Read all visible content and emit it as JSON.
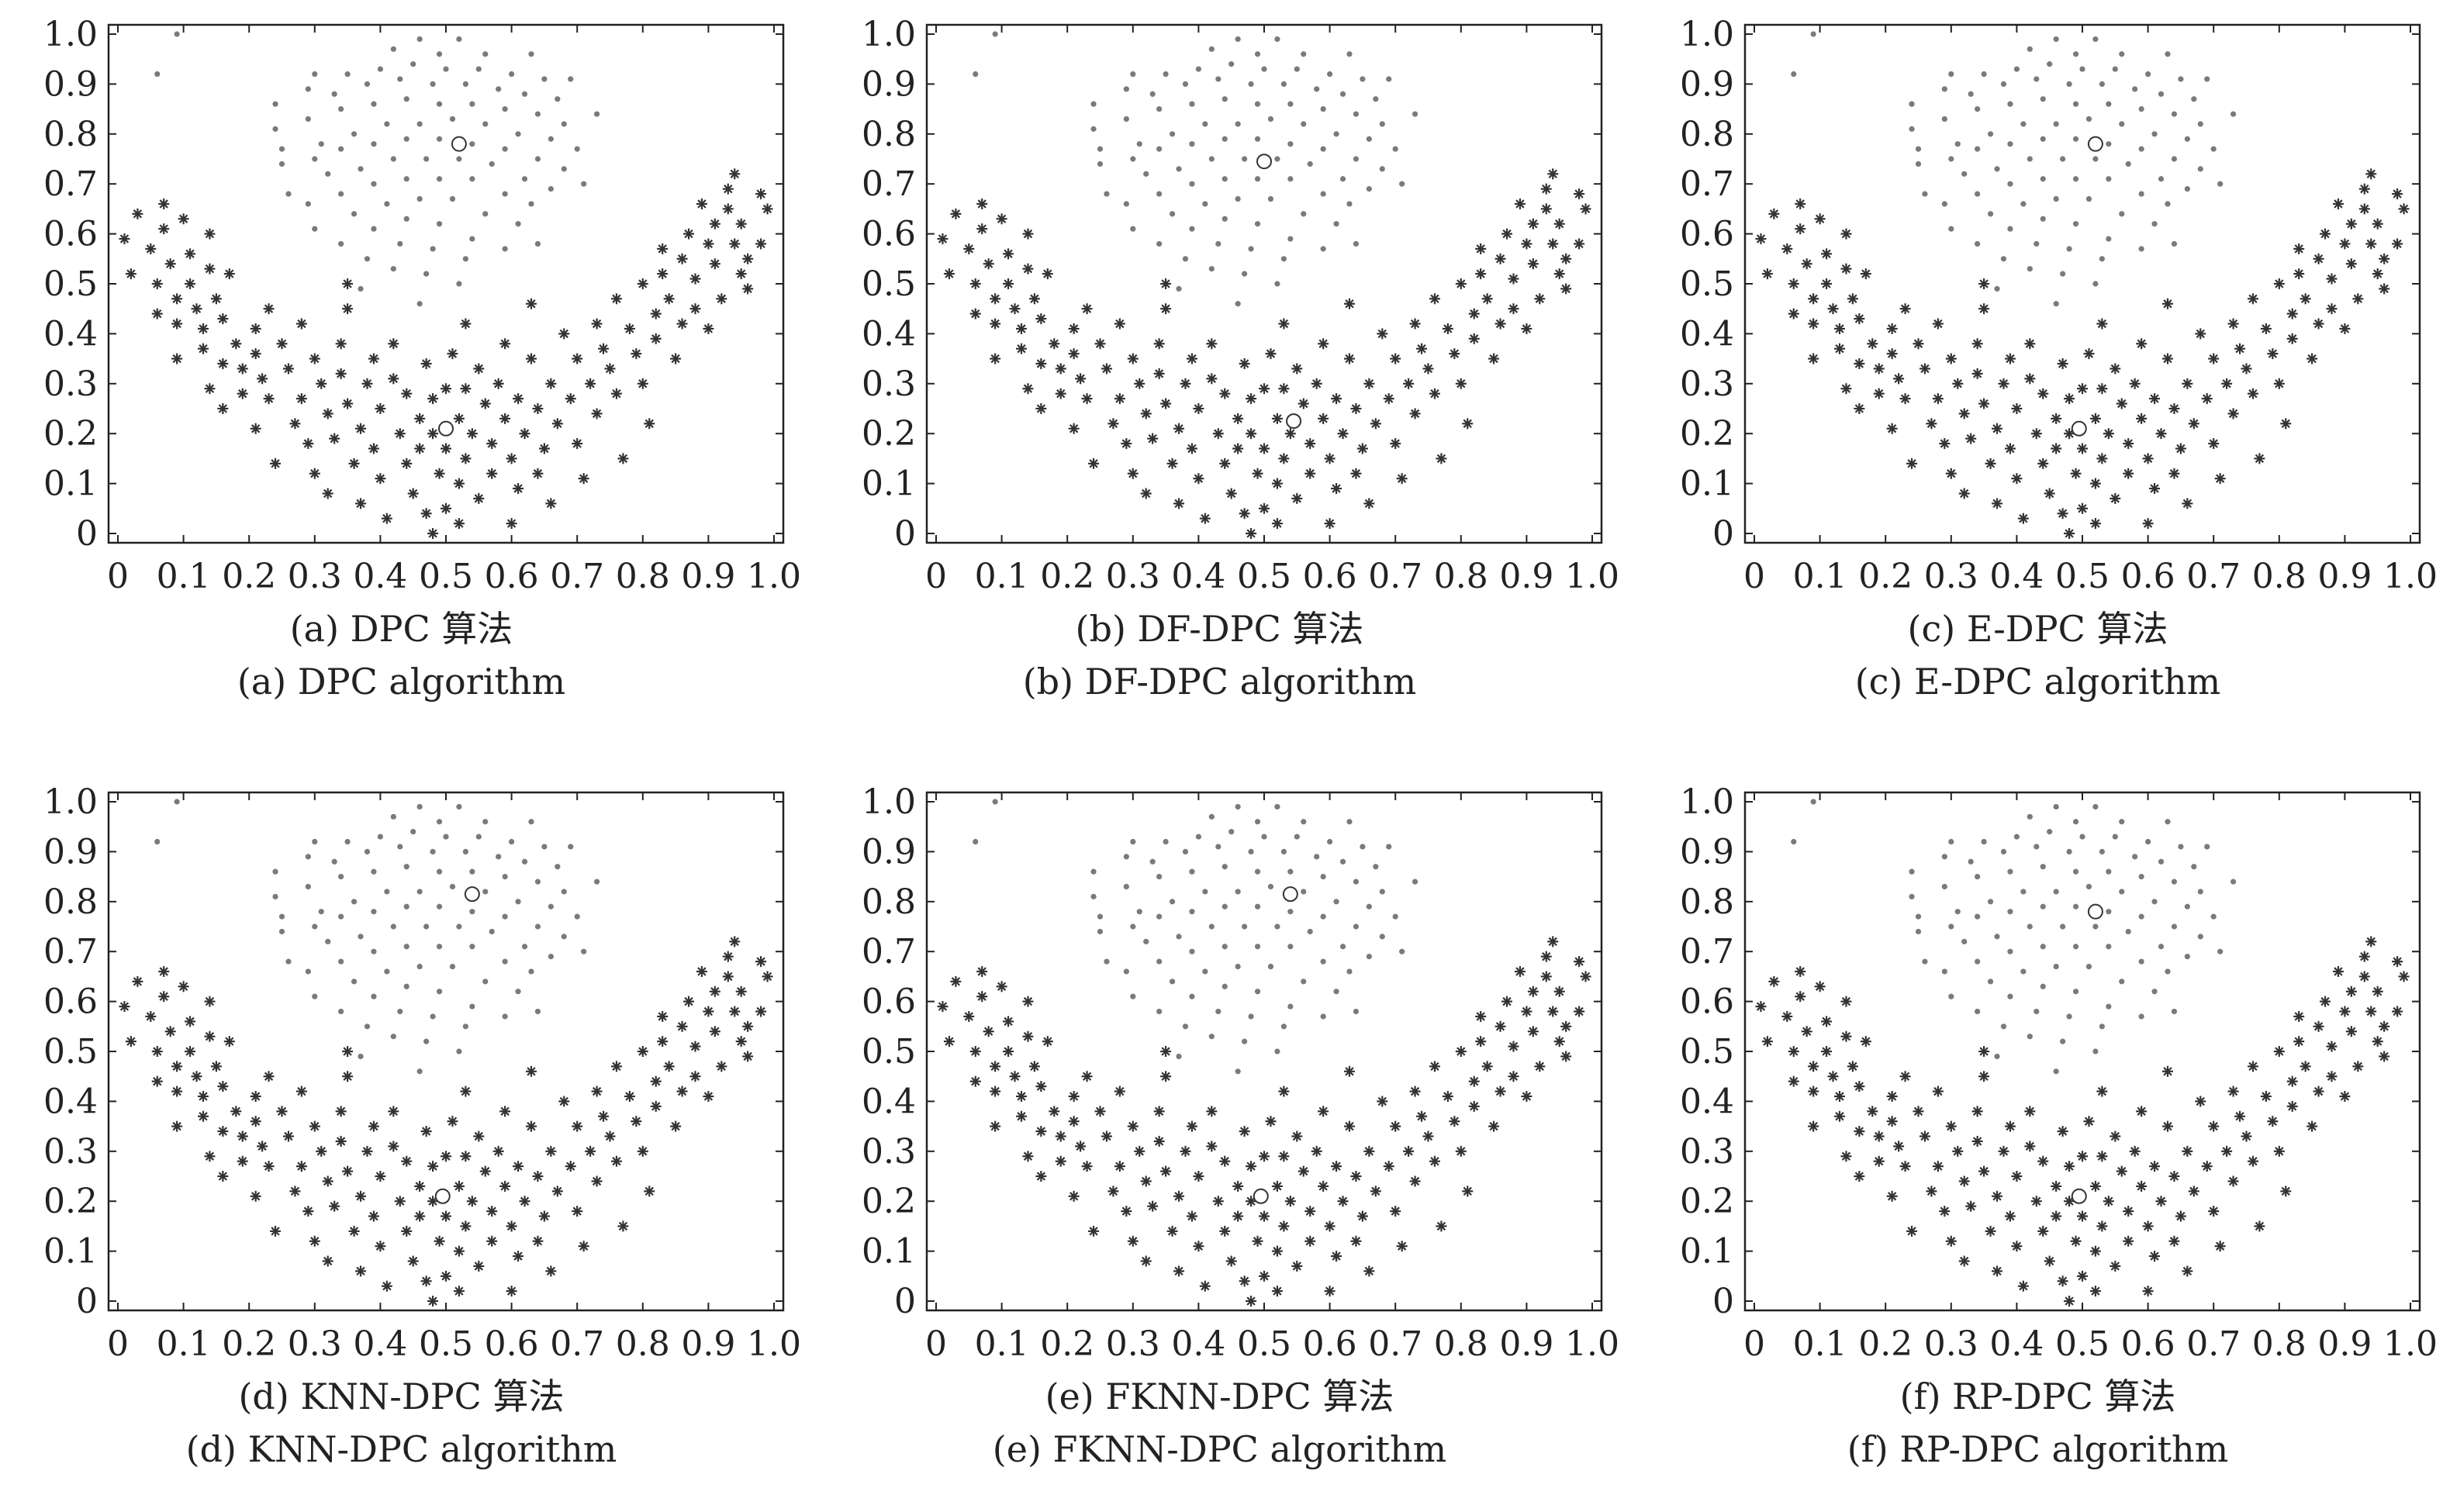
{
  "figure": {
    "panels": [
      {
        "id": "a",
        "caption_cn": "(a) DPC 算法",
        "caption_en": "(a) DPC algorithm",
        "centers": [
          [
            0.52,
            0.78
          ],
          [
            0.5,
            0.21
          ]
        ]
      },
      {
        "id": "b",
        "caption_cn": "(b) DF-DPC 算法",
        "caption_en": "(b) DF-DPC algorithm",
        "centers": [
          [
            0.5,
            0.745
          ],
          [
            0.545,
            0.225
          ]
        ]
      },
      {
        "id": "c",
        "caption_cn": "(c) E-DPC 算法",
        "caption_en": "(c) E-DPC algorithm",
        "centers": [
          [
            0.52,
            0.78
          ],
          [
            0.495,
            0.21
          ]
        ]
      },
      {
        "id": "d",
        "caption_cn": "(d) KNN-DPC 算法",
        "caption_en": "(d) KNN-DPC algorithm",
        "centers": [
          [
            0.54,
            0.815
          ],
          [
            0.495,
            0.21
          ]
        ]
      },
      {
        "id": "e",
        "caption_cn": "(e) FKNN-DPC 算法",
        "caption_en": "(e) FKNN-DPC algorithm",
        "centers": [
          [
            0.54,
            0.815
          ],
          [
            0.495,
            0.21
          ]
        ]
      },
      {
        "id": "f",
        "caption_cn": "(f) RP-DPC 算法",
        "caption_en": "(f) RP-DPC algorithm",
        "centers": [
          [
            0.52,
            0.78
          ],
          [
            0.495,
            0.21
          ]
        ]
      }
    ]
  },
  "chart_data": {
    "type": "scatter",
    "xlim": [
      0,
      1.0
    ],
    "ylim": [
      0,
      1.0
    ],
    "xticks": [
      "0",
      "0.1",
      "0.2",
      "0.3",
      "0.4",
      "0.5",
      "0.6",
      "0.7",
      "0.8",
      "0.9",
      "1.0"
    ],
    "yticks": [
      "0",
      "0.1",
      "0.2",
      "0.3",
      "0.4",
      "0.5",
      "0.6",
      "0.7",
      "0.8",
      "0.9",
      "1.0"
    ],
    "series": [
      {
        "marker": "dot",
        "points": [
          [
            0.09,
            1.0
          ],
          [
            0.06,
            0.92
          ],
          [
            0.46,
            0.99
          ],
          [
            0.52,
            0.99
          ],
          [
            0.42,
            0.97
          ],
          [
            0.49,
            0.96
          ],
          [
            0.56,
            0.96
          ],
          [
            0.63,
            0.96
          ],
          [
            0.3,
            0.92
          ],
          [
            0.35,
            0.92
          ],
          [
            0.4,
            0.93
          ],
          [
            0.45,
            0.94
          ],
          [
            0.5,
            0.93
          ],
          [
            0.55,
            0.93
          ],
          [
            0.6,
            0.92
          ],
          [
            0.65,
            0.91
          ],
          [
            0.69,
            0.91
          ],
          [
            0.24,
            0.86
          ],
          [
            0.29,
            0.89
          ],
          [
            0.33,
            0.88
          ],
          [
            0.38,
            0.9
          ],
          [
            0.43,
            0.91
          ],
          [
            0.48,
            0.9
          ],
          [
            0.53,
            0.9
          ],
          [
            0.58,
            0.89
          ],
          [
            0.62,
            0.88
          ],
          [
            0.67,
            0.87
          ],
          [
            0.24,
            0.81
          ],
          [
            0.29,
            0.83
          ],
          [
            0.34,
            0.85
          ],
          [
            0.39,
            0.86
          ],
          [
            0.44,
            0.87
          ],
          [
            0.49,
            0.86
          ],
          [
            0.54,
            0.86
          ],
          [
            0.59,
            0.85
          ],
          [
            0.64,
            0.84
          ],
          [
            0.68,
            0.82
          ],
          [
            0.73,
            0.84
          ],
          [
            0.25,
            0.77
          ],
          [
            0.31,
            0.78
          ],
          [
            0.36,
            0.8
          ],
          [
            0.41,
            0.82
          ],
          [
            0.46,
            0.82
          ],
          [
            0.51,
            0.83
          ],
          [
            0.56,
            0.82
          ],
          [
            0.61,
            0.8
          ],
          [
            0.66,
            0.79
          ],
          [
            0.7,
            0.77
          ],
          [
            0.25,
            0.74
          ],
          [
            0.3,
            0.75
          ],
          [
            0.34,
            0.77
          ],
          [
            0.39,
            0.78
          ],
          [
            0.44,
            0.79
          ],
          [
            0.49,
            0.79
          ],
          [
            0.54,
            0.78
          ],
          [
            0.59,
            0.77
          ],
          [
            0.64,
            0.75
          ],
          [
            0.68,
            0.73
          ],
          [
            0.26,
            0.68
          ],
          [
            0.32,
            0.72
          ],
          [
            0.37,
            0.73
          ],
          [
            0.42,
            0.75
          ],
          [
            0.47,
            0.75
          ],
          [
            0.52,
            0.75
          ],
          [
            0.57,
            0.74
          ],
          [
            0.62,
            0.71
          ],
          [
            0.66,
            0.69
          ],
          [
            0.71,
            0.7
          ],
          [
            0.29,
            0.66
          ],
          [
            0.34,
            0.68
          ],
          [
            0.39,
            0.7
          ],
          [
            0.44,
            0.71
          ],
          [
            0.49,
            0.71
          ],
          [
            0.54,
            0.71
          ],
          [
            0.59,
            0.68
          ],
          [
            0.63,
            0.66
          ],
          [
            0.3,
            0.61
          ],
          [
            0.36,
            0.64
          ],
          [
            0.41,
            0.66
          ],
          [
            0.46,
            0.67
          ],
          [
            0.51,
            0.67
          ],
          [
            0.56,
            0.64
          ],
          [
            0.61,
            0.62
          ],
          [
            0.64,
            0.58
          ],
          [
            0.34,
            0.58
          ],
          [
            0.39,
            0.61
          ],
          [
            0.44,
            0.63
          ],
          [
            0.49,
            0.62
          ],
          [
            0.54,
            0.59
          ],
          [
            0.59,
            0.57
          ],
          [
            0.38,
            0.55
          ],
          [
            0.43,
            0.58
          ],
          [
            0.48,
            0.57
          ],
          [
            0.53,
            0.55
          ],
          [
            0.42,
            0.53
          ],
          [
            0.47,
            0.52
          ],
          [
            0.52,
            0.5
          ],
          [
            0.37,
            0.49
          ],
          [
            0.46,
            0.46
          ]
        ]
      },
      {
        "marker": "star",
        "points": [
          [
            0.01,
            0.59
          ],
          [
            0.02,
            0.52
          ],
          [
            0.03,
            0.64
          ],
          [
            0.05,
            0.57
          ],
          [
            0.06,
            0.5
          ],
          [
            0.06,
            0.44
          ],
          [
            0.07,
            0.66
          ],
          [
            0.07,
            0.61
          ],
          [
            0.08,
            0.54
          ],
          [
            0.09,
            0.47
          ],
          [
            0.09,
            0.42
          ],
          [
            0.09,
            0.35
          ],
          [
            0.1,
            0.63
          ],
          [
            0.11,
            0.56
          ],
          [
            0.11,
            0.5
          ],
          [
            0.12,
            0.45
          ],
          [
            0.13,
            0.41
          ],
          [
            0.13,
            0.37
          ],
          [
            0.14,
            0.6
          ],
          [
            0.14,
            0.53
          ],
          [
            0.15,
            0.47
          ],
          [
            0.16,
            0.43
          ],
          [
            0.14,
            0.29
          ],
          [
            0.16,
            0.34
          ],
          [
            0.16,
            0.25
          ],
          [
            0.17,
            0.52
          ],
          [
            0.18,
            0.38
          ],
          [
            0.19,
            0.33
          ],
          [
            0.19,
            0.28
          ],
          [
            0.21,
            0.41
          ],
          [
            0.21,
            0.36
          ],
          [
            0.22,
            0.31
          ],
          [
            0.23,
            0.27
          ],
          [
            0.21,
            0.21
          ],
          [
            0.23,
            0.45
          ],
          [
            0.24,
            0.14
          ],
          [
            0.25,
            0.38
          ],
          [
            0.26,
            0.33
          ],
          [
            0.27,
            0.22
          ],
          [
            0.28,
            0.42
          ],
          [
            0.28,
            0.27
          ],
          [
            0.29,
            0.18
          ],
          [
            0.3,
            0.35
          ],
          [
            0.3,
            0.12
          ],
          [
            0.31,
            0.3
          ],
          [
            0.32,
            0.24
          ],
          [
            0.32,
            0.08
          ],
          [
            0.33,
            0.19
          ],
          [
            0.34,
            0.38
          ],
          [
            0.34,
            0.32
          ],
          [
            0.35,
            0.5
          ],
          [
            0.35,
            0.45
          ],
          [
            0.35,
            0.26
          ],
          [
            0.36,
            0.14
          ],
          [
            0.37,
            0.21
          ],
          [
            0.37,
            0.06
          ],
          [
            0.38,
            0.3
          ],
          [
            0.39,
            0.35
          ],
          [
            0.39,
            0.17
          ],
          [
            0.4,
            0.25
          ],
          [
            0.4,
            0.11
          ],
          [
            0.41,
            0.03
          ],
          [
            0.42,
            0.38
          ],
          [
            0.42,
            0.31
          ],
          [
            0.43,
            0.2
          ],
          [
            0.44,
            0.28
          ],
          [
            0.44,
            0.14
          ],
          [
            0.45,
            0.08
          ],
          [
            0.46,
            0.23
          ],
          [
            0.46,
            0.17
          ],
          [
            0.47,
            0.34
          ],
          [
            0.47,
            0.04
          ],
          [
            0.48,
            0.0
          ],
          [
            0.48,
            0.27
          ],
          [
            0.48,
            0.2
          ],
          [
            0.49,
            0.12
          ],
          [
            0.5,
            0.29
          ],
          [
            0.5,
            0.17
          ],
          [
            0.5,
            0.05
          ],
          [
            0.51,
            0.36
          ],
          [
            0.52,
            0.23
          ],
          [
            0.52,
            0.1
          ],
          [
            0.53,
            0.42
          ],
          [
            0.53,
            0.29
          ],
          [
            0.53,
            0.15
          ],
          [
            0.52,
            0.02
          ],
          [
            0.54,
            0.2
          ],
          [
            0.55,
            0.33
          ],
          [
            0.55,
            0.07
          ],
          [
            0.56,
            0.26
          ],
          [
            0.57,
            0.18
          ],
          [
            0.57,
            0.12
          ],
          [
            0.58,
            0.3
          ],
          [
            0.59,
            0.23
          ],
          [
            0.59,
            0.38
          ],
          [
            0.6,
            0.15
          ],
          [
            0.6,
            0.02
          ],
          [
            0.61,
            0.27
          ],
          [
            0.61,
            0.09
          ],
          [
            0.62,
            0.2
          ],
          [
            0.63,
            0.35
          ],
          [
            0.63,
            0.46
          ],
          [
            0.64,
            0.25
          ],
          [
            0.64,
            0.12
          ],
          [
            0.65,
            0.17
          ],
          [
            0.66,
            0.3
          ],
          [
            0.66,
            0.06
          ],
          [
            0.67,
            0.22
          ],
          [
            0.68,
            0.4
          ],
          [
            0.69,
            0.27
          ],
          [
            0.7,
            0.35
          ],
          [
            0.7,
            0.18
          ],
          [
            0.71,
            0.11
          ],
          [
            0.72,
            0.3
          ],
          [
            0.73,
            0.42
          ],
          [
            0.73,
            0.24
          ],
          [
            0.74,
            0.37
          ],
          [
            0.75,
            0.33
          ],
          [
            0.76,
            0.47
          ],
          [
            0.76,
            0.28
          ],
          [
            0.77,
            0.15
          ],
          [
            0.78,
            0.41
          ],
          [
            0.79,
            0.36
          ],
          [
            0.8,
            0.3
          ],
          [
            0.8,
            0.5
          ],
          [
            0.81,
            0.22
          ],
          [
            0.82,
            0.44
          ],
          [
            0.82,
            0.39
          ],
          [
            0.83,
            0.57
          ],
          [
            0.83,
            0.52
          ],
          [
            0.84,
            0.47
          ],
          [
            0.85,
            0.35
          ],
          [
            0.86,
            0.55
          ],
          [
            0.86,
            0.42
          ],
          [
            0.87,
            0.6
          ],
          [
            0.88,
            0.51
          ],
          [
            0.88,
            0.45
          ],
          [
            0.89,
            0.66
          ],
          [
            0.9,
            0.58
          ],
          [
            0.9,
            0.41
          ],
          [
            0.91,
            0.62
          ],
          [
            0.91,
            0.54
          ],
          [
            0.92,
            0.47
          ],
          [
            0.93,
            0.69
          ],
          [
            0.93,
            0.65
          ],
          [
            0.94,
            0.72
          ],
          [
            0.94,
            0.58
          ],
          [
            0.95,
            0.62
          ],
          [
            0.95,
            0.52
          ],
          [
            0.96,
            0.55
          ],
          [
            0.96,
            0.49
          ],
          [
            0.98,
            0.68
          ],
          [
            0.98,
            0.58
          ],
          [
            0.99,
            0.65
          ]
        ]
      }
    ]
  }
}
